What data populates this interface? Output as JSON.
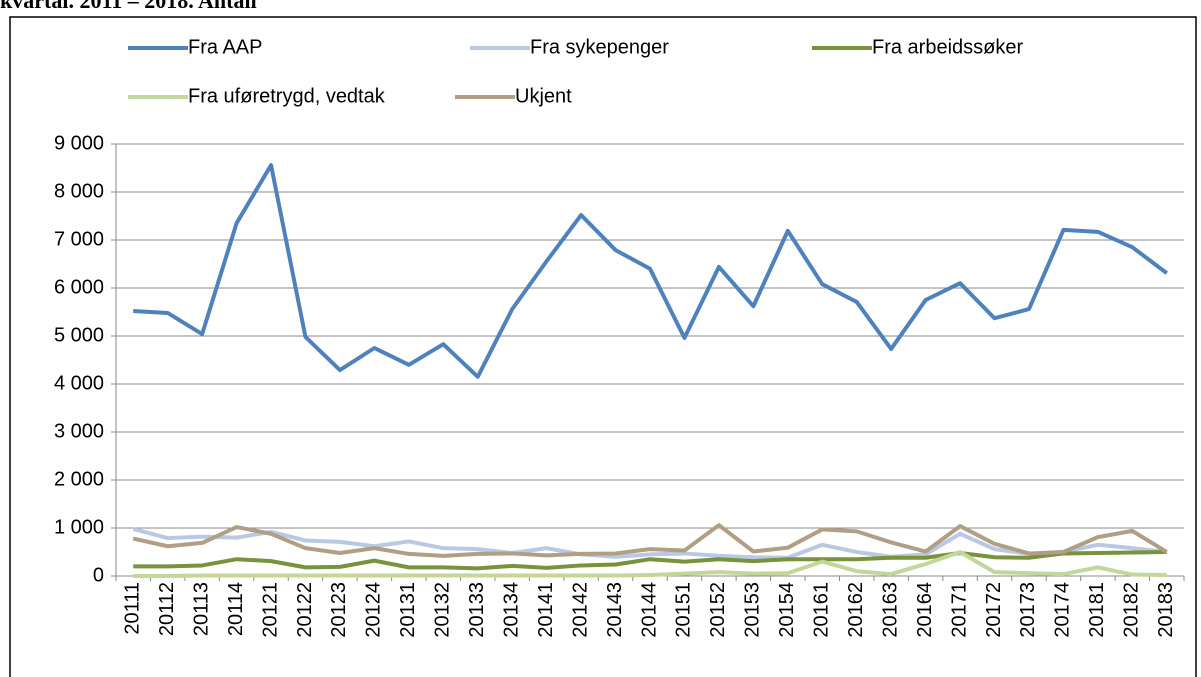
{
  "chart_data": {
    "type": "line",
    "title": "kvartal. 2011 – 2018. Antall",
    "categories": [
      "20111",
      "20112",
      "20113",
      "20114",
      "20121",
      "20122",
      "20123",
      "20124",
      "20131",
      "20132",
      "20133",
      "20134",
      "20141",
      "20142",
      "20143",
      "20144",
      "20151",
      "20152",
      "20153",
      "20154",
      "20161",
      "20162",
      "20163",
      "20164",
      "20171",
      "20172",
      "20173",
      "20174",
      "20181",
      "20182",
      "20183"
    ],
    "series": [
      {
        "name": "Fra AAP",
        "color": "#4f81bd",
        "values": [
          5520,
          5480,
          5040,
          7350,
          8560,
          4980,
          4290,
          4750,
          4400,
          4830,
          4150,
          5560,
          6560,
          7520,
          6790,
          6400,
          4960,
          6440,
          5620,
          7190,
          6080,
          5710,
          4730,
          5750,
          6100,
          5370,
          5560,
          7210,
          7170,
          6850,
          6310
        ]
      },
      {
        "name": "Fra sykepenger",
        "color": "#b9c9e4",
        "values": [
          980,
          790,
          820,
          800,
          920,
          740,
          710,
          620,
          720,
          580,
          560,
          480,
          580,
          450,
          400,
          450,
          470,
          420,
          390,
          380,
          650,
          500,
          400,
          450,
          880,
          560,
          460,
          500,
          650,
          580,
          500
        ]
      },
      {
        "name": "Fra arbeidssøker",
        "color": "#77933c",
        "values": [
          200,
          200,
          220,
          350,
          310,
          180,
          190,
          320,
          180,
          180,
          160,
          210,
          170,
          220,
          240,
          350,
          300,
          350,
          310,
          350,
          350,
          350,
          380,
          380,
          480,
          390,
          380,
          470,
          480,
          490,
          500
        ]
      },
      {
        "name": "Fra uføretrygd, vedtak",
        "color": "#c3d69b",
        "values": [
          0,
          0,
          10,
          10,
          10,
          10,
          10,
          10,
          10,
          10,
          10,
          10,
          10,
          10,
          10,
          20,
          50,
          80,
          50,
          60,
          300,
          100,
          40,
          250,
          500,
          80,
          60,
          40,
          180,
          30,
          20
        ]
      },
      {
        "name": "Ukjent",
        "color": "#b09f84",
        "values": [
          780,
          620,
          690,
          1020,
          880,
          580,
          480,
          580,
          460,
          420,
          460,
          470,
          430,
          460,
          470,
          560,
          530,
          1060,
          510,
          590,
          970,
          930,
          700,
          510,
          1040,
          670,
          470,
          500,
          810,
          940,
          500
        ]
      }
    ],
    "ylim": [
      0,
      9000
    ],
    "yticks": [
      0,
      {
        "value": 1000,
        "label": "1 000"
      },
      {
        "value": 2000,
        "label": "2 000"
      },
      {
        "value": 3000,
        "label": "3 000"
      },
      {
        "value": 4000,
        "label": "4 000"
      },
      {
        "value": 5000,
        "label": "5 000"
      },
      {
        "value": 6000,
        "label": "6 000"
      },
      {
        "value": 7000,
        "label": "7 000"
      },
      {
        "value": 8000,
        "label": "8 000"
      },
      {
        "value": 9000,
        "label": "9 000"
      }
    ],
    "grid": true,
    "legend": "top"
  }
}
